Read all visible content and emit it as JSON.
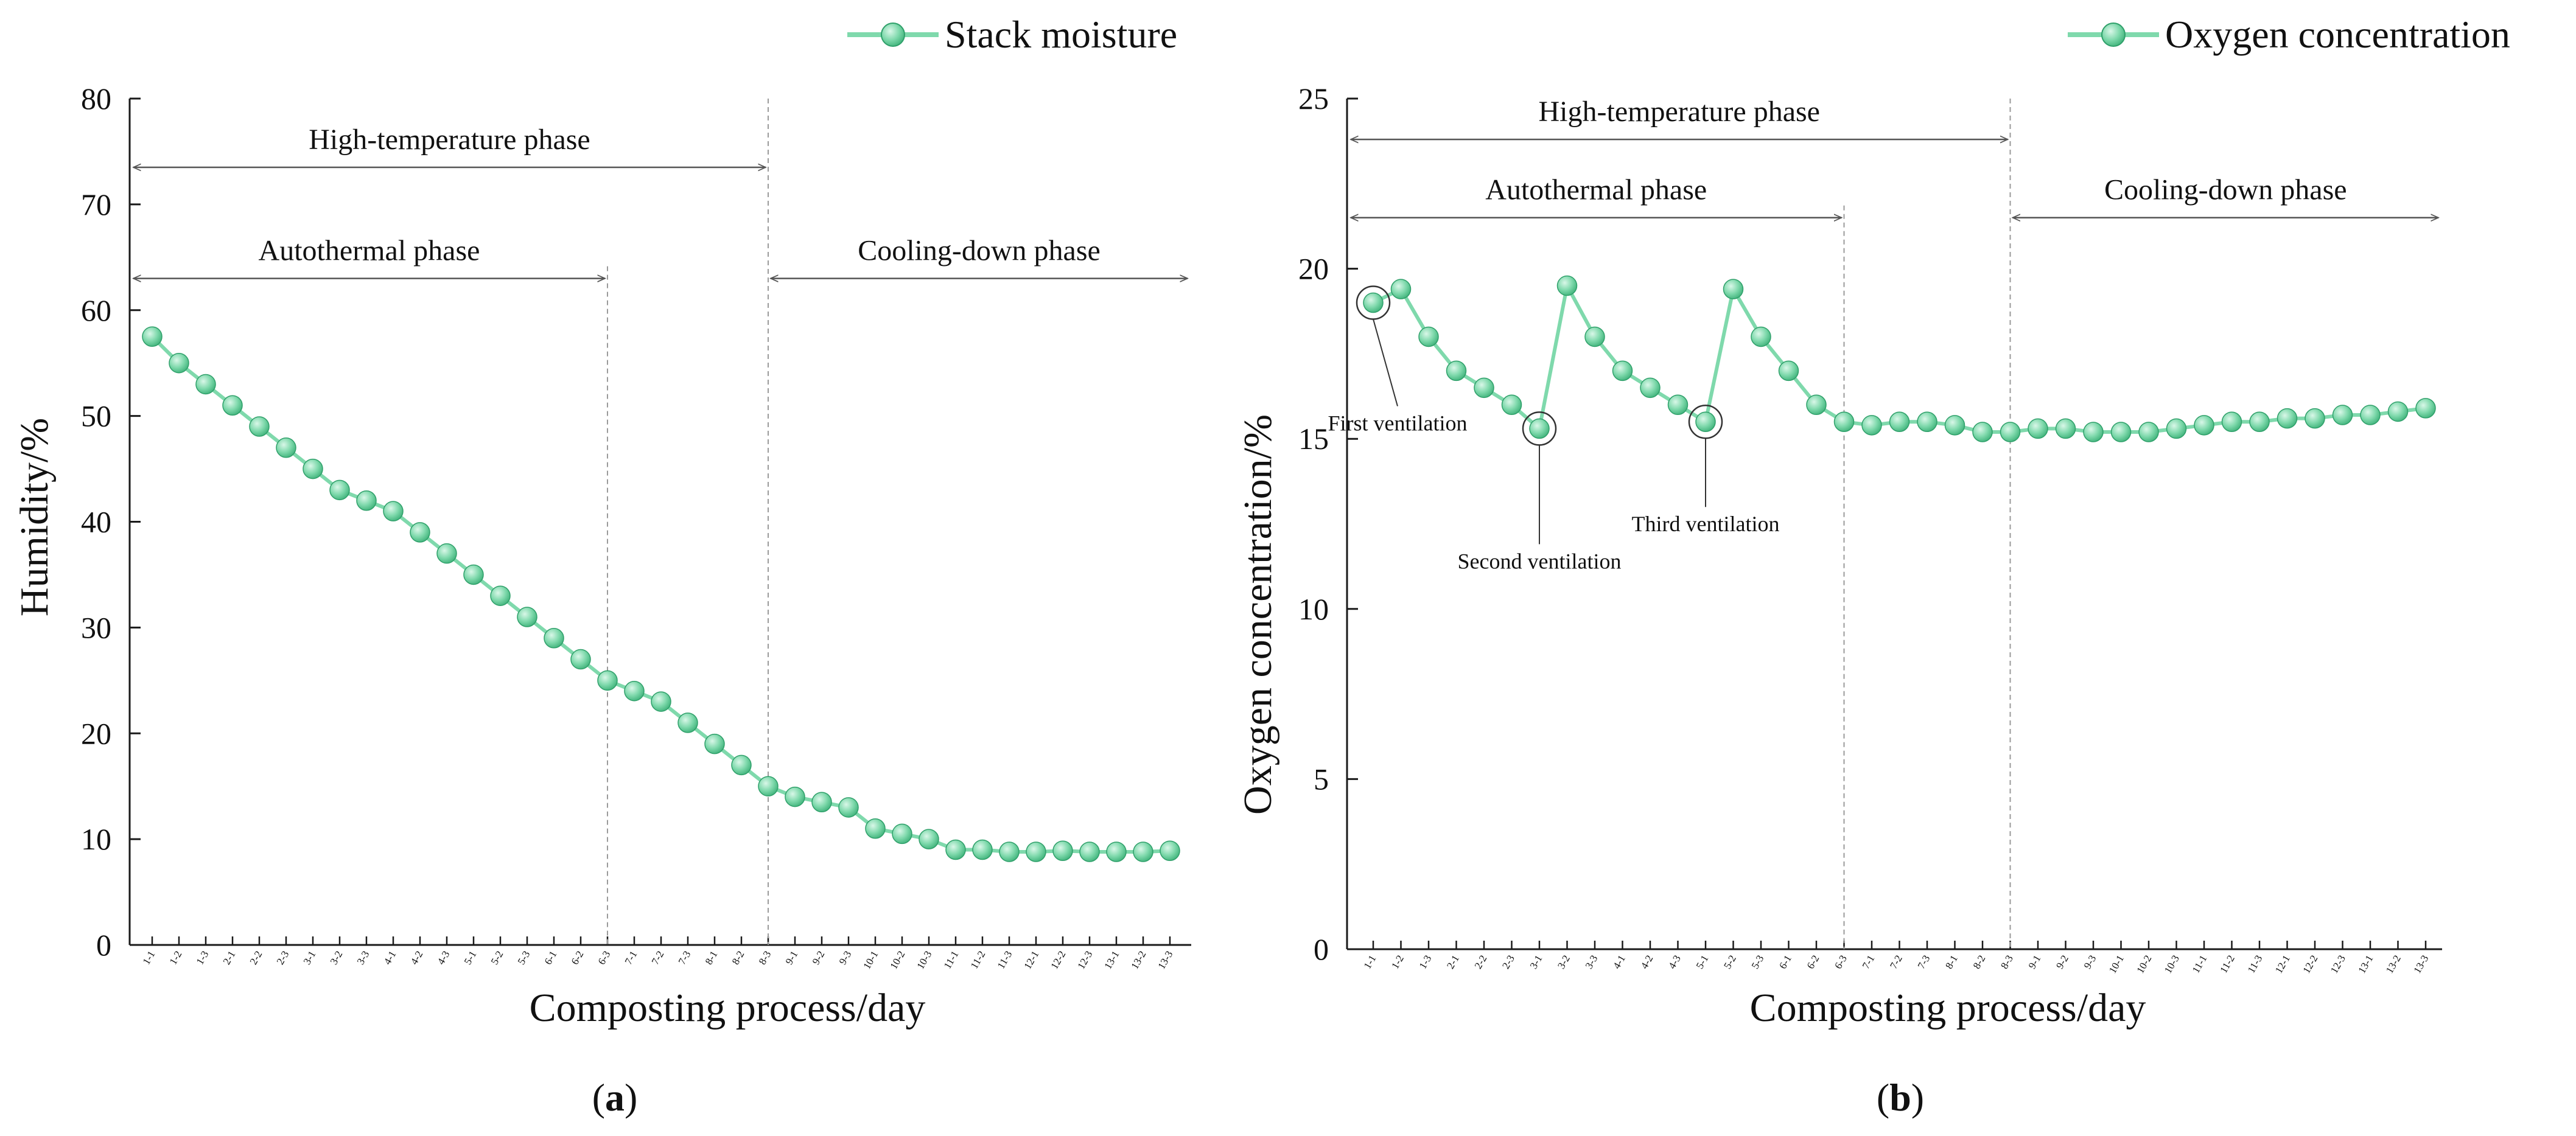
{
  "colors": {
    "series": "#7fd9ac",
    "series_stroke": "#2fa06a",
    "axis": "#1a1a1a",
    "phase_line": "#9a9a9a",
    "arrow": "#555555"
  },
  "chart_data": [
    {
      "type": "line",
      "panel_label": "(a)",
      "panel_letter": "a",
      "legend": "Stack moisture",
      "xlabel": "Composting process/day",
      "ylabel": "Humidity/%",
      "ylim": [
        0,
        80
      ],
      "yticks": [
        0,
        10,
        20,
        30,
        40,
        50,
        60,
        70,
        80
      ],
      "categories": [
        "1-1",
        "1-2",
        "1-3",
        "2-1",
        "2-2",
        "2-3",
        "3-1",
        "3-2",
        "3-3",
        "4-1",
        "4-2",
        "4-3",
        "5-1",
        "5-2",
        "5-3",
        "6-1",
        "6-2",
        "6-3",
        "7-1",
        "7-2",
        "7-3",
        "8-1",
        "8-2",
        "8-3",
        "9-1",
        "9-2",
        "9-3",
        "10-1",
        "10-2",
        "10-3",
        "11-1",
        "11-2",
        "11-3",
        "12-1",
        "12-2",
        "12-3",
        "13-1",
        "13-2",
        "13-3"
      ],
      "series": [
        {
          "name": "Stack moisture",
          "values": [
            57.5,
            55,
            53,
            51,
            49,
            47,
            45,
            43,
            42,
            41,
            39,
            37,
            35,
            33,
            31,
            29,
            27,
            25,
            24,
            23,
            21,
            19,
            17,
            15,
            14,
            13.5,
            13,
            11,
            10.5,
            10,
            9,
            9,
            8.8,
            8.8,
            8.9,
            8.8,
            8.8,
            8.8,
            8.9
          ]
        }
      ],
      "phase_dividers": [
        "6-3",
        "8-3"
      ],
      "phases": [
        {
          "label": "High-temperature phase",
          "from": "start",
          "to": "8-3",
          "level": 73.5
        },
        {
          "label": "Autothermal phase",
          "from": "start",
          "to": "6-3",
          "level": 63
        },
        {
          "label": "Cooling-down phase",
          "from": "8-3",
          "to": "end",
          "level": 63
        }
      ],
      "annotations": []
    },
    {
      "type": "line",
      "panel_label": "(b)",
      "panel_letter": "b",
      "legend": "Oxygen concentration",
      "xlabel": "Composting process/day",
      "ylabel": "Oxygen concentration/%",
      "ylim": [
        0,
        25
      ],
      "yticks": [
        0,
        5,
        10,
        15,
        20,
        25
      ],
      "categories": [
        "1-1",
        "1-2",
        "1-3",
        "2-1",
        "2-2",
        "2-3",
        "3-1",
        "3-2",
        "3-3",
        "4-1",
        "4-2",
        "4-3",
        "5-1",
        "5-2",
        "5-3",
        "6-1",
        "6-2",
        "6-3",
        "7-1",
        "7-2",
        "7-3",
        "8-1",
        "8-2",
        "8-3",
        "9-1",
        "9-2",
        "9-3",
        "10-1",
        "10-2",
        "10-3",
        "11-1",
        "11-2",
        "11-3",
        "12-1",
        "12-2",
        "12-3",
        "13-1",
        "13-2",
        "13-3"
      ],
      "series": [
        {
          "name": "Oxygen concentration",
          "values": [
            19,
            19.4,
            18,
            17,
            16.5,
            16,
            15.3,
            19.5,
            18,
            17,
            16.5,
            16,
            15.5,
            19.4,
            18,
            17,
            16,
            15.5,
            15.4,
            15.5,
            15.5,
            15.4,
            15.2,
            15.2,
            15.3,
            15.3,
            15.2,
            15.2,
            15.2,
            15.3,
            15.4,
            15.5,
            15.5,
            15.6,
            15.6,
            15.7,
            15.7,
            15.8,
            15.9
          ]
        }
      ],
      "phase_dividers": [
        "6-3",
        "8-3"
      ],
      "phases": [
        {
          "label": "High-temperature phase",
          "from": "start",
          "to": "8-3",
          "level": 23.8
        },
        {
          "label": "Autothermal phase",
          "from": "start",
          "to": "6-3",
          "level": 21.5
        },
        {
          "label": "Cooling-down phase",
          "from": "8-3",
          "to": "end",
          "level": 21.5
        }
      ],
      "annotations": [
        {
          "text": "First ventilation",
          "point_index": 0
        },
        {
          "text": "Second ventilation",
          "point_index": 6
        },
        {
          "text": "Third ventilation",
          "point_index": 12
        }
      ]
    }
  ]
}
